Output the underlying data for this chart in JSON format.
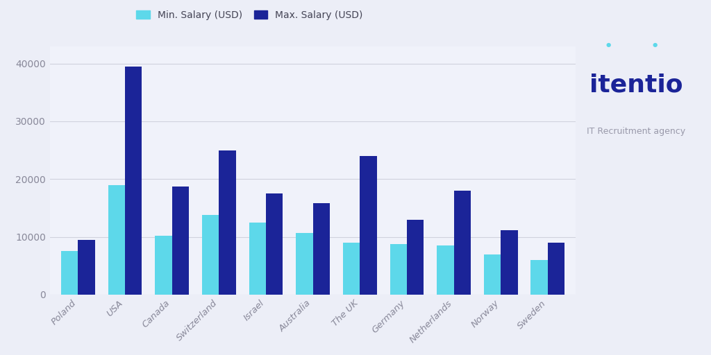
{
  "categories": [
    "Poland",
    "USA",
    "Canada",
    "Switzerland",
    "Israel",
    "Australia",
    "The UK",
    "Germany",
    "Netherlands",
    "Norway",
    "Sweden"
  ],
  "min_salary": [
    7500,
    19000,
    10200,
    13800,
    12500,
    10700,
    9000,
    8800,
    8500,
    7000,
    6000
  ],
  "max_salary": [
    9500,
    39500,
    18700,
    25000,
    17500,
    15800,
    24000,
    13000,
    18000,
    11200,
    9000
  ],
  "min_color": "#5DD8EA",
  "max_color": "#1B2498",
  "background_color": "#ECEEF7",
  "plot_background_color": "#F0F2FA",
  "grid_color": "#D0D2DD",
  "legend_min_label": "Min. Salary (USD)",
  "legend_max_label": "Max. Salary (USD)",
  "yticks": [
    0,
    10000,
    20000,
    30000,
    40000
  ],
  "ylim": [
    0,
    43000
  ],
  "bar_width": 0.36,
  "logo_text": "itentio",
  "logo_subtext": "IT Recruitment agency",
  "logo_color": "#1B2498",
  "logo_subcolor": "#9999AA",
  "logo_dot_color": "#5DD8EA",
  "tick_color": "#888899",
  "legend_text_color": "#444455"
}
